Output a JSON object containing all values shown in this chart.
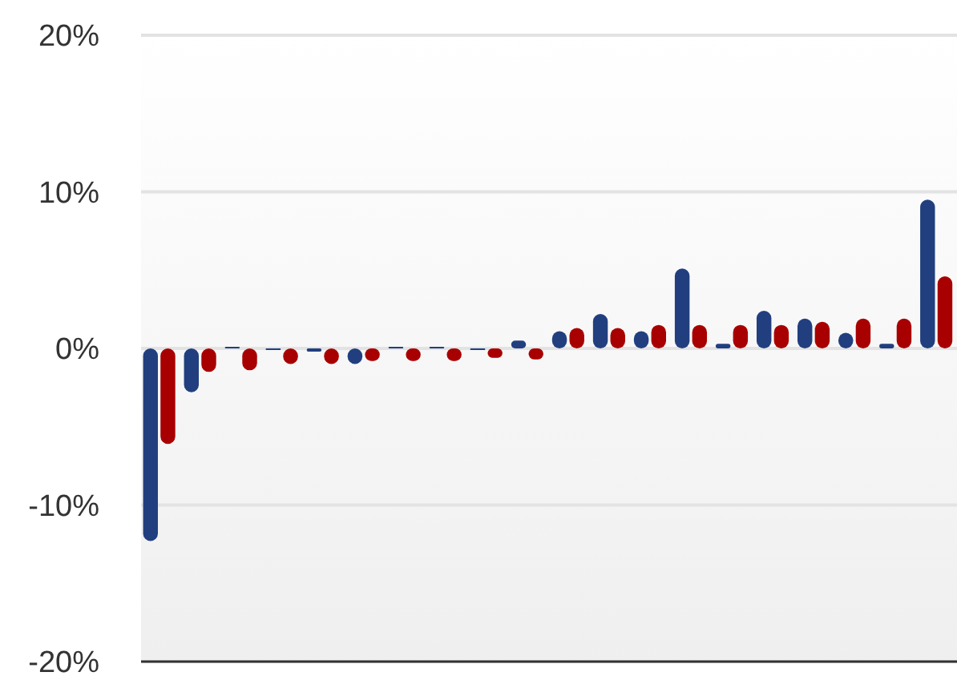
{
  "chart_data": {
    "type": "bar",
    "categories": [
      null,
      null,
      null,
      null,
      null,
      null,
      null,
      null,
      null,
      null,
      null,
      null,
      null,
      null,
      null,
      null,
      null,
      null,
      null,
      null
    ],
    "series": [
      {
        "color": "#213f7f",
        "values": [
          -12.3,
          -2.8,
          0.1,
          0,
          -0.2,
          -1.0,
          0.1,
          0.1,
          0,
          0.5,
          1.1,
          2.2,
          1.1,
          5.1,
          0.3,
          2.4,
          1.9,
          1.0,
          0.3,
          9.5
        ]
      },
      {
        "color": "#a80000",
        "values": [
          -6.1,
          -1.5,
          -1.4,
          -1.0,
          -1.0,
          -0.8,
          -0.8,
          -0.8,
          -0.6,
          -0.7,
          1.3,
          1.3,
          1.5,
          1.5,
          1.5,
          1.5,
          1.7,
          1.9,
          1.9,
          4.6
        ]
      }
    ],
    "ylim": [
      -20,
      20
    ],
    "yticks": [
      {
        "value": -20,
        "label": "-20%"
      },
      {
        "value": -10,
        "label": "-10%"
      },
      {
        "value": 0,
        "label": "0%"
      },
      {
        "value": 10,
        "label": "10%"
      },
      {
        "value": 20,
        "label": "20%"
      }
    ],
    "grid": "y"
  }
}
